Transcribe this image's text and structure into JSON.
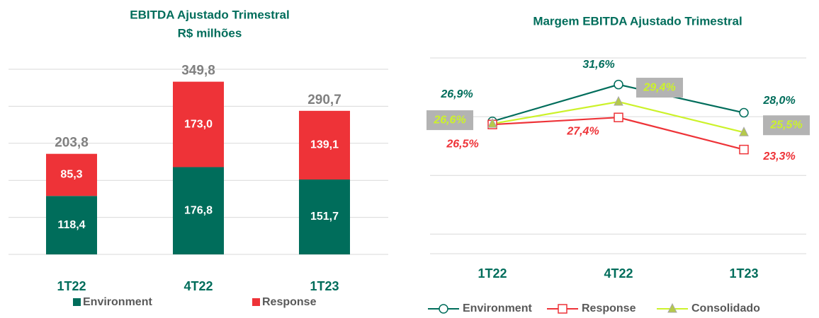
{
  "chart_data": [
    {
      "type": "stacked-bar",
      "title": "EBITDA Ajustado Trimestral",
      "subtitle": "R$ milhões",
      "categories": [
        "1T22",
        "4T22",
        "1T23"
      ],
      "series": [
        {
          "name": "Environment",
          "color": "#006d5b",
          "values": [
            118.4,
            176.8,
            151.7
          ],
          "value_labels": [
            "118,4",
            "176,8",
            "151,7"
          ]
        },
        {
          "name": "Response",
          "color": "#ee3338",
          "values": [
            85.3,
            173.0,
            139.1
          ],
          "value_labels": [
            "85,3",
            "173,0",
            "139,1"
          ]
        }
      ],
      "totals": {
        "values": [
          203.8,
          349.8,
          290.7
        ],
        "value_labels": [
          "203,8",
          "349,8",
          "290,7"
        ]
      },
      "ylim": [
        0,
        375
      ],
      "yticks": [
        0,
        75,
        150,
        225,
        300,
        375
      ],
      "grid": true
    },
    {
      "type": "line",
      "title": "Margem EBITDA Ajustado Trimestral",
      "categories": [
        "1T22",
        "4T22",
        "1T23"
      ],
      "series": [
        {
          "name": "Environment",
          "color": "#006d5b",
          "marker": "circle",
          "values": [
            26.9,
            31.6,
            28.0
          ],
          "value_labels": [
            "26,9%",
            "31,6%",
            "28,0%"
          ]
        },
        {
          "name": "Response",
          "color": "#ee3338",
          "marker": "square",
          "values": [
            26.5,
            27.4,
            23.3
          ],
          "value_labels": [
            "26,5%",
            "27,4%",
            "23,3%"
          ]
        },
        {
          "name": "Consolidado",
          "color": "#ccf22a",
          "marker": "triangle",
          "values": [
            26.6,
            29.4,
            25.5
          ],
          "value_labels": [
            "26,6%",
            "29,4%",
            "25,5%"
          ]
        }
      ],
      "ylim": [
        10,
        35
      ],
      "yticks": [
        12.5,
        20,
        27.5,
        35
      ],
      "grid": true
    }
  ]
}
